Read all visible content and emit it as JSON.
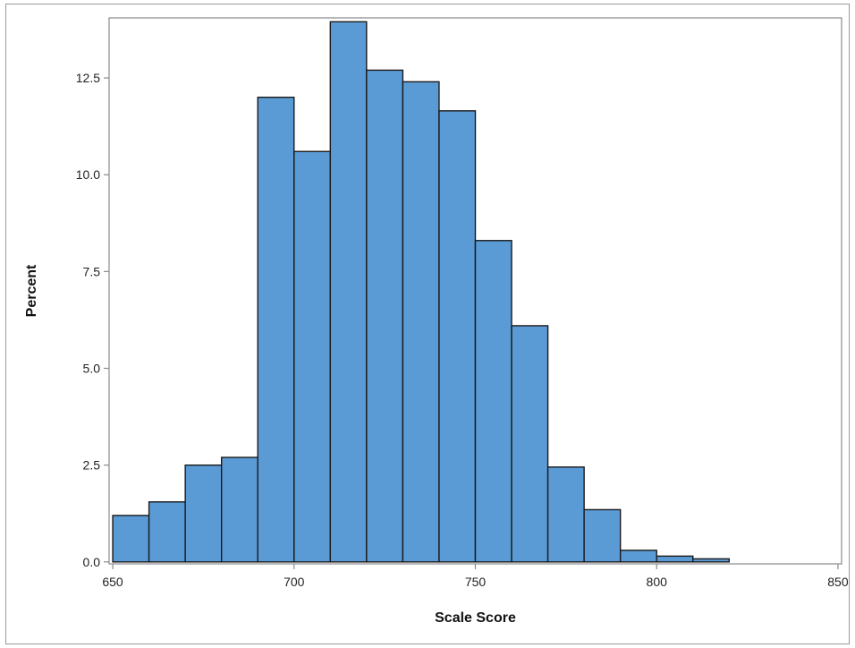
{
  "chart_data": {
    "type": "bar",
    "title": "",
    "xlabel": "Scale Score",
    "ylabel": "Percent",
    "bin_width": 10,
    "bins": [
      {
        "start": 650,
        "end": 660,
        "value": 1.2
      },
      {
        "start": 660,
        "end": 670,
        "value": 1.55
      },
      {
        "start": 670,
        "end": 680,
        "value": 2.5
      },
      {
        "start": 680,
        "end": 690,
        "value": 2.7
      },
      {
        "start": 690,
        "end": 700,
        "value": 12.0
      },
      {
        "start": 700,
        "end": 710,
        "value": 10.6
      },
      {
        "start": 710,
        "end": 720,
        "value": 13.95
      },
      {
        "start": 720,
        "end": 730,
        "value": 12.7
      },
      {
        "start": 730,
        "end": 740,
        "value": 12.4
      },
      {
        "start": 740,
        "end": 750,
        "value": 11.65
      },
      {
        "start": 750,
        "end": 760,
        "value": 8.3
      },
      {
        "start": 760,
        "end": 770,
        "value": 6.1
      },
      {
        "start": 770,
        "end": 780,
        "value": 2.45
      },
      {
        "start": 780,
        "end": 790,
        "value": 1.35
      },
      {
        "start": 790,
        "end": 800,
        "value": 0.3
      },
      {
        "start": 800,
        "end": 810,
        "value": 0.15
      },
      {
        "start": 810,
        "end": 820,
        "value": 0.08
      }
    ],
    "xlim": [
      649,
      851
    ],
    "ylim": [
      -0.05,
      14.05
    ],
    "x_ticks": [
      650,
      700,
      750,
      800,
      850
    ],
    "x_tick_labels": [
      "650",
      "700",
      "750",
      "800",
      "850"
    ],
    "y_ticks": [
      0,
      2.5,
      5,
      7.5,
      10,
      12.5
    ],
    "y_tick_labels": [
      "0.0",
      "2.5",
      "5.0",
      "7.5",
      "10.0",
      "12.5"
    ],
    "grid": false,
    "colors": {
      "bar_fill": "#5b9bd5",
      "bar_stroke": "#1a1a1a",
      "axis": "#8a8a8a"
    }
  }
}
